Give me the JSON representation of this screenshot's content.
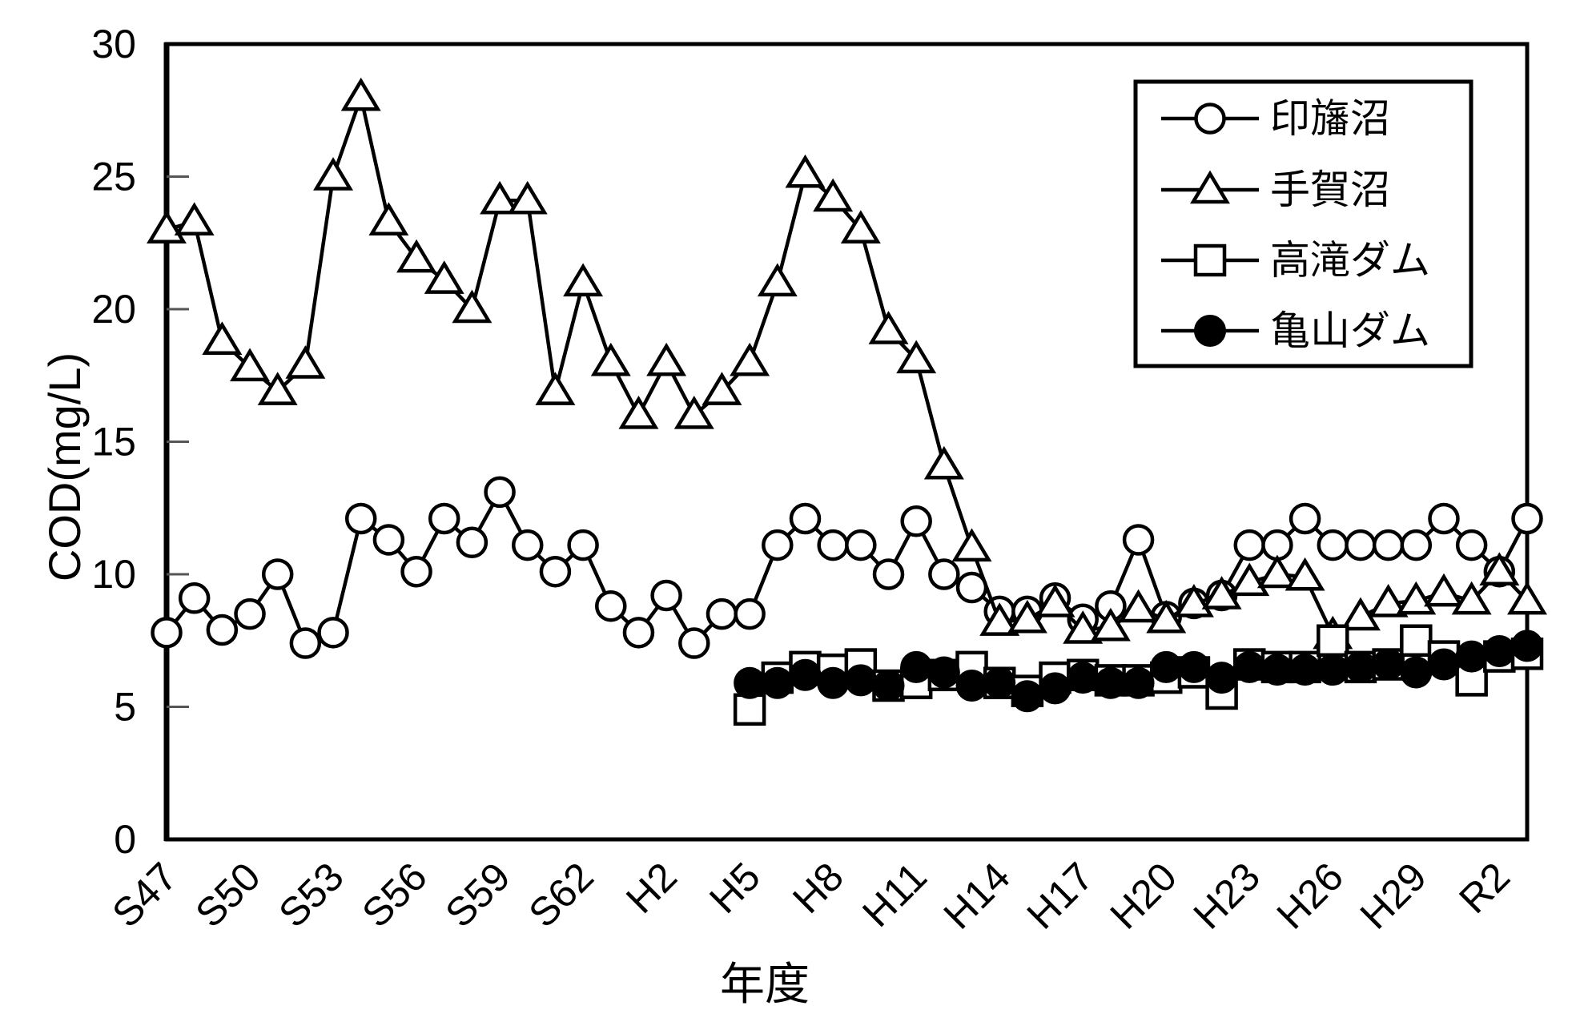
{
  "page": {
    "background": "#ffffff"
  },
  "chart_data": {
    "type": "line",
    "title": "",
    "xlabel": "年度",
    "ylabel": "COD(mg/L)",
    "ylim": [
      0,
      30
    ],
    "yticks": [
      0,
      5,
      10,
      15,
      20,
      25,
      30
    ],
    "grid": false,
    "legend_position": "top-right-inside",
    "line_color": "#000000",
    "axis_color": "#000000",
    "background": "#ffffff",
    "categories": [
      "S47",
      "S48",
      "S49",
      "S50",
      "S51",
      "S52",
      "S53",
      "S54",
      "S55",
      "S56",
      "S57",
      "S58",
      "S59",
      "S60",
      "S61",
      "S62",
      "S63",
      "H1",
      "H2",
      "H3",
      "H4",
      "H5",
      "H6",
      "H7",
      "H8",
      "H9",
      "H10",
      "H11",
      "H12",
      "H13",
      "H14",
      "H15",
      "H16",
      "H17",
      "H18",
      "H19",
      "H20",
      "H21",
      "H22",
      "H23",
      "H24",
      "H25",
      "H26",
      "H27",
      "H28",
      "H29",
      "H30",
      "R1",
      "R2",
      "R3"
    ],
    "x_tick_labels": [
      "S47",
      "S50",
      "S53",
      "S56",
      "S59",
      "S62",
      "H2",
      "H5",
      "H8",
      "H11",
      "H14",
      "H17",
      "H20",
      "H23",
      "H26",
      "H29",
      "R2"
    ],
    "series": [
      {
        "name": "印旛沼",
        "marker": "open-circle",
        "color": "#000000",
        "values": [
          7.8,
          9.1,
          7.9,
          8.5,
          10.0,
          7.4,
          7.8,
          12.1,
          11.3,
          10.1,
          12.1,
          11.2,
          13.1,
          11.1,
          10.1,
          11.1,
          8.8,
          7.8,
          9.2,
          7.4,
          8.5,
          8.5,
          11.1,
          12.1,
          11.1,
          11.1,
          10.0,
          12.0,
          10.0,
          9.5,
          8.6,
          8.6,
          9.1,
          8.3,
          8.8,
          11.3,
          8.4,
          8.9,
          9.2,
          11.1,
          11.1,
          12.1,
          11.1,
          11.1,
          11.1,
          11.1,
          12.1,
          11.1,
          10.1,
          12.1
        ]
      },
      {
        "name": "手賀沼",
        "marker": "open-triangle",
        "color": "#000000",
        "values": [
          23.0,
          23.3,
          18.8,
          17.8,
          16.9,
          17.9,
          25.0,
          28.0,
          23.3,
          21.9,
          21.1,
          20.0,
          24.1,
          24.1,
          16.9,
          21.0,
          18.0,
          16.0,
          18.0,
          16.0,
          16.9,
          18.0,
          21.0,
          25.1,
          24.2,
          23.0,
          19.2,
          18.1,
          14.1,
          11.0,
          8.2,
          8.3,
          8.9,
          7.9,
          8.0,
          8.7,
          8.3,
          8.9,
          9.2,
          9.7,
          10.0,
          9.9,
          7.7,
          8.4,
          8.9,
          9.0,
          9.3,
          9.0,
          10.1,
          9.0
        ]
      },
      {
        "name": "高滝ダム",
        "marker": "open-square",
        "color": "#000000",
        "values": [
          null,
          null,
          null,
          null,
          null,
          null,
          null,
          null,
          null,
          null,
          null,
          null,
          null,
          null,
          null,
          null,
          null,
          null,
          null,
          null,
          null,
          4.9,
          6.1,
          6.5,
          6.4,
          6.6,
          5.8,
          5.9,
          6.2,
          6.5,
          5.9,
          5.6,
          6.1,
          6.2,
          6.0,
          6.0,
          6.1,
          6.3,
          5.5,
          6.6,
          6.5,
          6.5,
          7.5,
          6.5,
          6.6,
          7.5,
          6.9,
          6.0,
          6.9,
          7.0
        ]
      },
      {
        "name": "亀山ダム",
        "marker": "filled-circle",
        "color": "#000000",
        "values": [
          null,
          null,
          null,
          null,
          null,
          null,
          null,
          null,
          null,
          null,
          null,
          null,
          null,
          null,
          null,
          null,
          null,
          null,
          null,
          null,
          null,
          5.9,
          5.9,
          6.2,
          5.9,
          6.0,
          5.8,
          6.5,
          6.3,
          5.8,
          5.9,
          5.4,
          5.7,
          6.1,
          5.9,
          5.9,
          6.5,
          6.5,
          6.1,
          6.5,
          6.4,
          6.4,
          6.4,
          6.5,
          6.6,
          6.3,
          6.6,
          6.9,
          7.1,
          7.3
        ]
      }
    ]
  }
}
